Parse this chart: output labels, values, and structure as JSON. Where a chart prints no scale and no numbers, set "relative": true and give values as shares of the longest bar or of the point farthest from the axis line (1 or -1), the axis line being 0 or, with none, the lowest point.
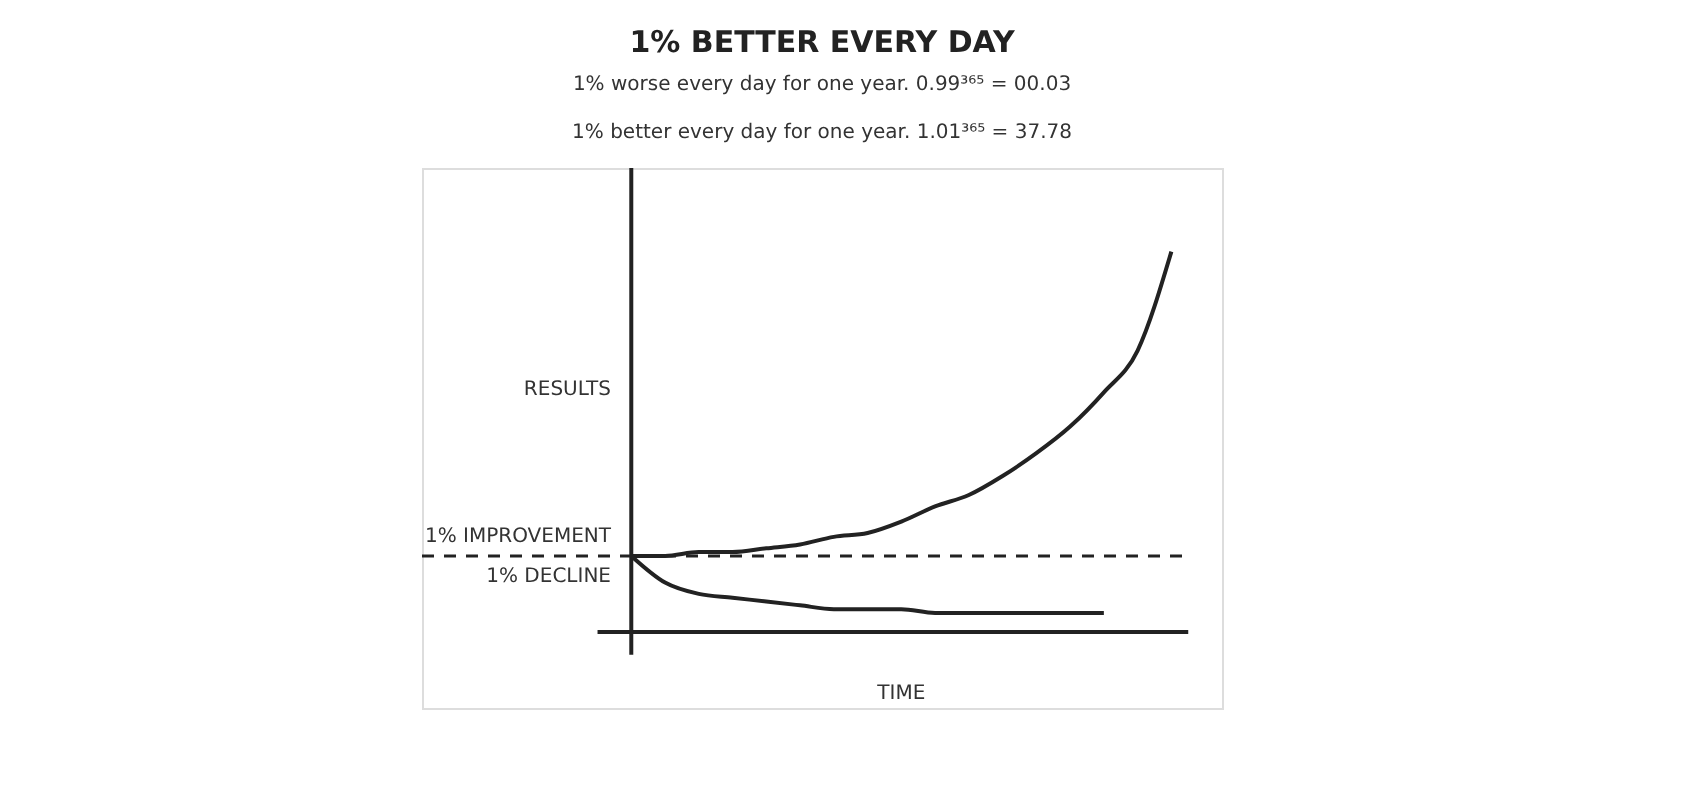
{
  "chart_data": {
    "type": "line",
    "relative": true,
    "title": "1% BETTER EVERY DAY",
    "subtitle": [
      "1% worse every day for one year.    0.99³⁶⁵ = 00.03",
      "1% better every day for one year.    1.01³⁶⁵ = 37.78"
    ],
    "xlabel": "TIME",
    "ylabel": "RESULTS",
    "categories": [
      null,
      null,
      null,
      null,
      null,
      null,
      null,
      null,
      null,
      null,
      null,
      null,
      null,
      null,
      null,
      null,
      null
    ],
    "series": [
      {
        "name": "1% IMPROVEMENT",
        "color": "#222222",
        "values": [
          0.2,
          0.2,
          0.21,
          0.21,
          0.22,
          0.23,
          0.25,
          0.26,
          0.29,
          0.33,
          0.36,
          0.41,
          0.47,
          0.54,
          0.63,
          0.74,
          1
        ]
      },
      {
        "name": "1% DECLINE",
        "color": "#222222",
        "values": [
          0.2,
          0.13,
          0.1,
          0.09,
          0.08,
          0.07,
          0.06,
          0.06,
          0.06,
          0.05,
          0.05,
          0.05,
          0.05,
          0.05,
          0.05,
          null,
          null
        ]
      }
    ],
    "ref_lines": [
      {
        "axis": "y",
        "value": 0.2,
        "color": "#222222",
        "line_style": "dashed"
      }
    ],
    "legend": false,
    "grid": false,
    "marker": "none",
    "line_style": "solid"
  }
}
